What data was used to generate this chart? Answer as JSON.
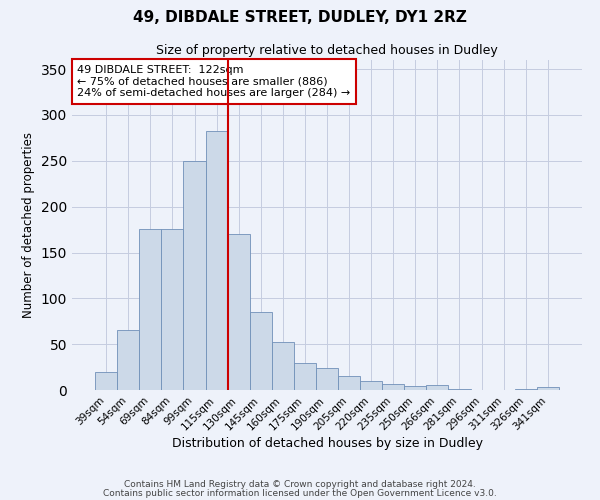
{
  "title": "49, DIBDALE STREET, DUDLEY, DY1 2RZ",
  "subtitle": "Size of property relative to detached houses in Dudley",
  "xlabel": "Distribution of detached houses by size in Dudley",
  "ylabel": "Number of detached properties",
  "bar_color": "#ccd9e8",
  "bar_edge_color": "#7090b8",
  "background_color": "#eef2fa",
  "categories": [
    "39sqm",
    "54sqm",
    "69sqm",
    "84sqm",
    "99sqm",
    "115sqm",
    "130sqm",
    "145sqm",
    "160sqm",
    "175sqm",
    "190sqm",
    "205sqm",
    "220sqm",
    "235sqm",
    "250sqm",
    "266sqm",
    "281sqm",
    "296sqm",
    "311sqm",
    "326sqm",
    "341sqm"
  ],
  "values": [
    20,
    66,
    176,
    176,
    250,
    283,
    170,
    85,
    52,
    30,
    24,
    15,
    10,
    7,
    4,
    5,
    1,
    0,
    0,
    1,
    3
  ],
  "ylim": [
    0,
    360
  ],
  "yticks": [
    0,
    50,
    100,
    150,
    200,
    250,
    300,
    350
  ],
  "vline_x": 5.5,
  "vline_color": "#cc0000",
  "annotation_title": "49 DIBDALE STREET:  122sqm",
  "annotation_line1": "← 75% of detached houses are smaller (886)",
  "annotation_line2": "24% of semi-detached houses are larger (284) →",
  "annotation_box_color": "#ffffff",
  "annotation_box_edge": "#cc0000",
  "footer1": "Contains HM Land Registry data © Crown copyright and database right 2024.",
  "footer2": "Contains public sector information licensed under the Open Government Licence v3.0."
}
